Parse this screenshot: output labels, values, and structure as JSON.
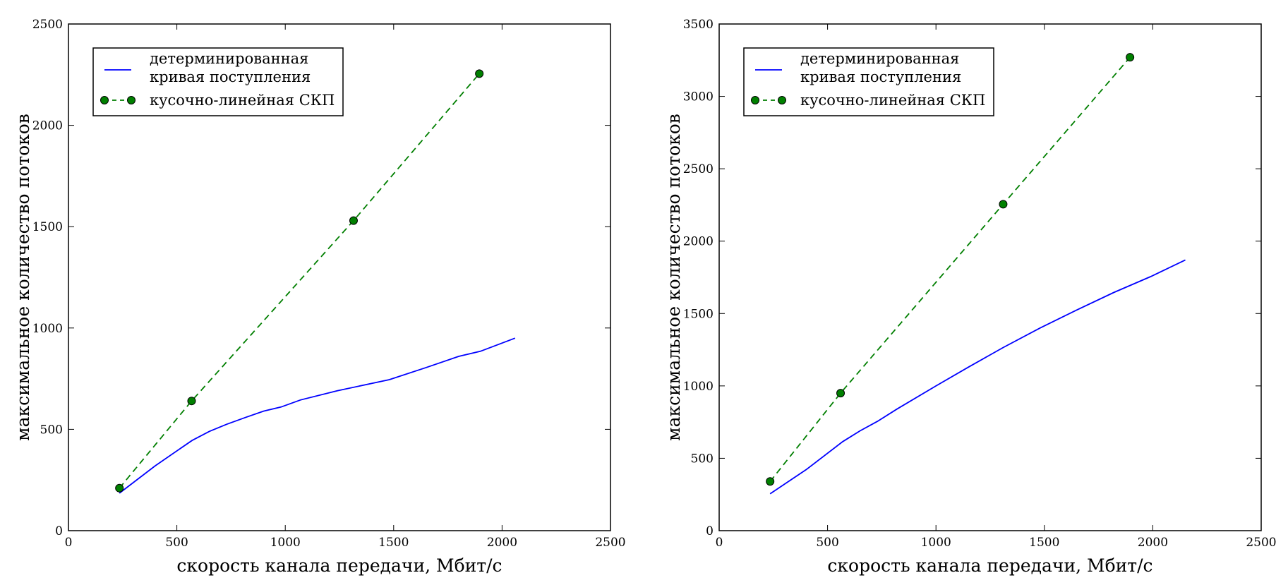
{
  "chart_data": [
    {
      "type": "line",
      "xlabel": "скорость канала передачи, Мбит/с",
      "ylabel": "максимальное количество потоков",
      "xlim": [
        0,
        2500
      ],
      "ylim": [
        0,
        2500
      ],
      "xticks": [
        0,
        500,
        1000,
        1500,
        2000,
        2500
      ],
      "yticks": [
        0,
        500,
        1000,
        1500,
        2000,
        2500
      ],
      "xtick_labels": [
        "0",
        "500",
        "1000",
        "1500",
        "2000",
        "2500"
      ],
      "ytick_labels": [
        "0",
        "500",
        "1000",
        "1500",
        "2000",
        "2500"
      ],
      "grid": false,
      "legend_position": "top-left",
      "series": [
        {
          "name": "детерминированная кривая поступления",
          "legend_lines": [
            "детерминированная",
            "кривая поступления"
          ],
          "color": "#0000ff",
          "style": "solid",
          "marker": "none",
          "x": [
            235,
            400,
            570,
            650,
            730,
            820,
            900,
            980,
            1070,
            1240,
            1480,
            1650,
            1800,
            1900,
            2060
          ],
          "y": [
            185,
            320,
            445,
            490,
            525,
            560,
            590,
            610,
            645,
            690,
            745,
            805,
            860,
            885,
            950
          ]
        },
        {
          "name": "кусочно-линейная СКП",
          "legend_lines": [
            "кусочно-линейная СКП"
          ],
          "color": "#007f00",
          "marker_color": "#008000",
          "style": "dashed",
          "marker": "circle",
          "x": [
            235,
            568,
            1315,
            1895
          ],
          "y": [
            210,
            640,
            1530,
            2255
          ]
        }
      ]
    },
    {
      "type": "line",
      "xlabel": "скорость канала передачи, Мбит/с",
      "ylabel": "максимальное количество потоков",
      "xlim": [
        0,
        2500
      ],
      "ylim": [
        0,
        3500
      ],
      "xticks": [
        0,
        500,
        1000,
        1500,
        2000,
        2500
      ],
      "yticks": [
        0,
        500,
        1000,
        1500,
        2000,
        2500,
        3000,
        3500
      ],
      "xtick_labels": [
        "0",
        "500",
        "1000",
        "1500",
        "2000",
        "2500"
      ],
      "ytick_labels": [
        "0",
        "500",
        "1000",
        "1500",
        "2000",
        "2500",
        "3000",
        "3500"
      ],
      "grid": false,
      "legend_position": "top-left",
      "series": [
        {
          "name": "детерминированная кривая поступления",
          "legend_lines": [
            "детерминированная",
            "кривая поступления"
          ],
          "color": "#0000ff",
          "style": "solid",
          "marker": "none",
          "x": [
            235,
            400,
            570,
            650,
            730,
            820,
            1000,
            1150,
            1310,
            1480,
            1650,
            1820,
            1990,
            2150
          ],
          "y": [
            255,
            420,
            615,
            690,
            755,
            840,
            1000,
            1130,
            1265,
            1400,
            1525,
            1645,
            1755,
            1870
          ]
        },
        {
          "name": "кусочно-линейная СКП",
          "legend_lines": [
            "кусочно-линейная СКП"
          ],
          "color": "#007f00",
          "marker_color": "#008000",
          "style": "dashed",
          "marker": "circle",
          "x": [
            235,
            560,
            1310,
            1895
          ],
          "y": [
            340,
            950,
            2255,
            3270
          ]
        }
      ]
    }
  ]
}
